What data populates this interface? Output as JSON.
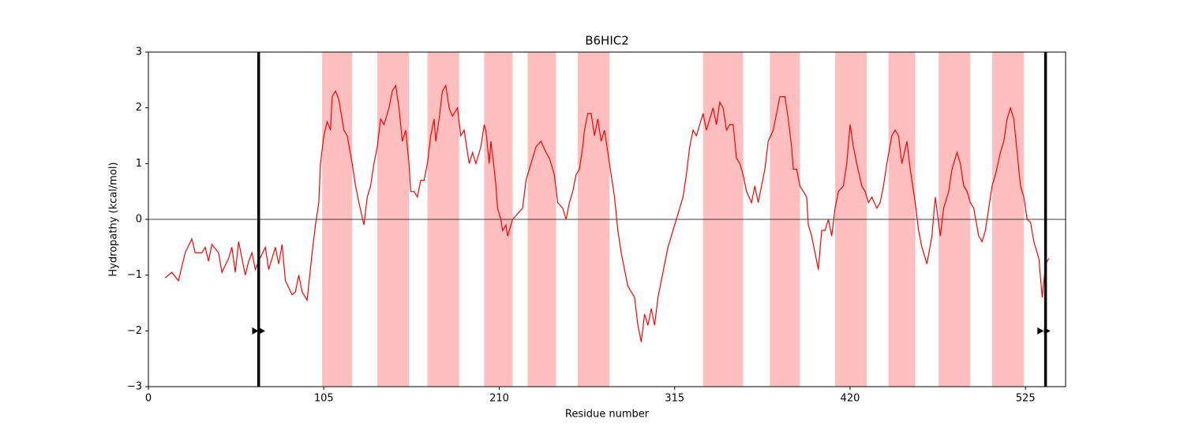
{
  "chart_data": {
    "type": "line",
    "title": "B6HIC2",
    "xlabel": "Residue number",
    "ylabel": "Hydropathy (kcal/mol)",
    "color": "#ff0000",
    "region_color": "#ffbfbf",
    "xlim": [
      0,
      549
    ],
    "ylim": [
      -3,
      3
    ],
    "xticks": [
      0,
      105,
      210,
      315,
      420,
      525
    ],
    "yticks": [
      {
        "value": -3,
        "label": "−3"
      },
      {
        "value": -2,
        "label": "−2"
      },
      {
        "value": -1,
        "label": "−1"
      },
      0,
      1,
      2,
      3
    ],
    "hline": 0,
    "vlines": [
      66,
      537
    ],
    "markers": {
      "x": [
        64,
        68,
        534,
        538
      ],
      "y": -2
    },
    "regions": [
      [
        104,
        122
      ],
      [
        137,
        156
      ],
      [
        167,
        186
      ],
      [
        201,
        218
      ],
      [
        227,
        244
      ],
      [
        257,
        276
      ],
      [
        332,
        356
      ],
      [
        372,
        390
      ],
      [
        411,
        430
      ],
      [
        443,
        459
      ],
      [
        473,
        492
      ],
      [
        505,
        524
      ]
    ],
    "x": [
      10,
      14,
      18,
      22,
      26,
      28,
      32,
      34,
      36,
      38,
      42,
      44,
      48,
      50,
      52,
      54,
      58,
      60,
      62,
      64,
      66,
      70,
      72,
      76,
      78,
      80,
      82,
      86,
      88,
      90,
      92,
      95,
      98,
      100,
      102,
      103,
      105,
      107,
      109,
      110,
      112,
      114,
      117,
      119,
      122,
      124,
      126,
      129,
      131,
      133,
      135,
      137,
      139,
      141,
      144,
      146,
      148,
      150,
      152,
      154,
      156,
      157,
      159,
      161,
      163,
      165,
      167,
      169,
      171,
      172,
      174,
      176,
      178,
      180,
      182,
      185,
      187,
      189,
      192,
      194,
      196,
      199,
      201,
      202,
      204,
      205,
      207,
      208,
      209,
      211,
      212,
      214,
      215,
      218,
      221,
      224,
      226,
      229,
      232,
      235,
      238,
      240,
      243,
      245,
      248,
      250,
      252,
      254,
      256,
      258,
      260,
      261,
      263,
      265,
      267,
      269,
      271,
      273,
      275,
      277,
      279,
      281,
      283,
      285,
      287,
      289,
      291,
      293,
      295,
      297,
      299,
      301,
      303,
      305,
      307,
      309,
      311,
      313,
      315,
      318,
      320,
      322,
      324,
      326,
      328,
      330,
      332,
      334,
      336,
      338,
      340,
      342,
      344,
      346,
      348,
      350,
      352,
      354,
      356,
      358,
      361,
      363,
      365,
      367,
      369,
      371,
      374,
      376,
      378,
      381,
      383,
      385,
      386,
      388,
      390,
      392,
      394,
      395,
      397,
      399,
      401,
      403,
      405,
      407,
      409,
      411,
      413,
      416,
      418,
      420,
      422,
      424,
      427,
      429,
      431,
      433,
      436,
      438,
      440,
      442,
      445,
      447,
      449,
      451,
      454,
      456,
      459,
      461,
      463,
      466,
      469,
      471,
      474,
      476,
      479,
      481,
      484,
      486,
      488,
      490,
      492,
      494,
      497,
      499,
      501,
      503,
      505,
      507,
      510,
      512,
      514,
      516,
      518,
      520,
      522,
      524,
      526,
      528,
      530,
      533,
      535,
      537,
      539
    ],
    "values": [
      -1.05,
      -0.95,
      -1.1,
      -0.6,
      -0.35,
      -0.6,
      -0.6,
      -0.5,
      -0.75,
      -0.45,
      -0.6,
      -0.95,
      -0.7,
      -0.5,
      -0.95,
      -0.4,
      -1.0,
      -0.75,
      -0.6,
      -0.9,
      -0.75,
      -0.5,
      -0.9,
      -0.5,
      -0.8,
      -0.45,
      -1.1,
      -1.35,
      -1.3,
      -1.0,
      -1.3,
      -1.45,
      -0.6,
      -0.1,
      0.3,
      1.0,
      1.5,
      1.75,
      1.6,
      2.2,
      2.3,
      2.15,
      1.6,
      1.5,
      1.0,
      0.6,
      0.3,
      -0.1,
      0.4,
      0.6,
      1.0,
      1.3,
      1.8,
      1.7,
      2.0,
      2.3,
      2.4,
      2.0,
      1.4,
      1.6,
      1.0,
      0.5,
      0.5,
      0.4,
      0.7,
      0.7,
      1.0,
      1.5,
      1.8,
      1.4,
      1.8,
      2.3,
      2.4,
      2.0,
      1.85,
      2.0,
      1.5,
      1.6,
      1.0,
      1.2,
      1.0,
      1.3,
      1.7,
      1.6,
      1.0,
      1.4,
      0.9,
      0.6,
      0.2,
      0.0,
      -0.2,
      -0.1,
      -0.3,
      0.0,
      0.1,
      0.2,
      0.7,
      1.0,
      1.3,
      1.4,
      1.2,
      1.1,
      0.8,
      0.3,
      0.2,
      0.0,
      0.3,
      0.5,
      0.8,
      0.9,
      1.3,
      1.6,
      1.9,
      1.9,
      1.5,
      1.8,
      1.4,
      1.6,
      1.2,
      0.8,
      0.4,
      -0.2,
      -0.6,
      -0.9,
      -1.2,
      -1.3,
      -1.4,
      -1.9,
      -2.2,
      -1.7,
      -1.9,
      -1.6,
      -1.9,
      -1.4,
      -1.1,
      -0.8,
      -0.5,
      -0.3,
      -0.1,
      0.2,
      0.4,
      0.8,
      1.3,
      1.6,
      1.5,
      1.7,
      1.9,
      1.6,
      1.8,
      2.0,
      1.7,
      2.1,
      2.0,
      1.6,
      1.7,
      1.7,
      1.1,
      1.0,
      0.8,
      0.5,
      0.3,
      0.6,
      0.3,
      0.6,
      0.9,
      1.4,
      1.6,
      1.9,
      2.2,
      2.2,
      1.8,
      1.3,
      0.9,
      0.9,
      0.6,
      0.5,
      0.4,
      -0.1,
      -0.3,
      -0.6,
      -0.9,
      -0.2,
      -0.2,
      0.0,
      -0.3,
      0.2,
      0.5,
      0.6,
      1.0,
      1.7,
      1.3,
      1.0,
      0.6,
      0.5,
      0.3,
      0.4,
      0.2,
      0.3,
      0.6,
      1.0,
      1.5,
      1.6,
      1.5,
      1.0,
      1.4,
      0.9,
      0.3,
      -0.2,
      -0.5,
      -0.8,
      -0.3,
      0.4,
      -0.3,
      0.2,
      0.5,
      0.9,
      1.2,
      1.0,
      0.6,
      0.5,
      0.3,
      0.2,
      -0.3,
      -0.4,
      -0.2,
      0.2,
      0.6,
      0.8,
      1.2,
      1.4,
      1.8,
      2.0,
      1.8,
      1.2,
      0.6,
      0.4,
      0.0,
      -0.05,
      -0.4,
      -0.7,
      -1.4,
      -0.8,
      -0.7
    ]
  }
}
